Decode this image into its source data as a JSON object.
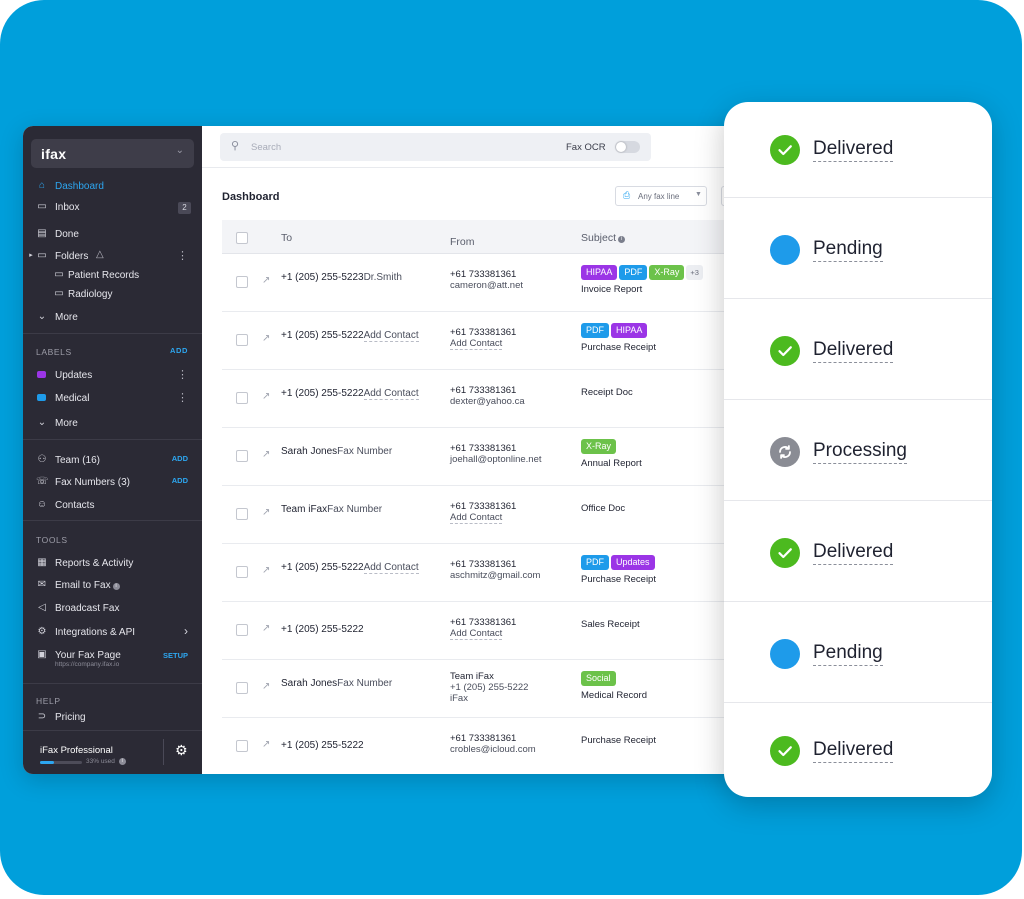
{
  "sidebar": {
    "logo": "ifax",
    "nav": {
      "dashboard": "Dashboard",
      "inbox": "Inbox",
      "inbox_count": "2",
      "done": "Done",
      "folders": "Folders",
      "patient_records": "Patient Records",
      "radiology": "Radiology",
      "more": "More"
    },
    "labels_section": {
      "title": "LABELS",
      "add": "ADD",
      "items": [
        {
          "label": "Updates",
          "color": "#9b35e6"
        },
        {
          "label": "Medical",
          "color": "#1e9bea"
        }
      ],
      "more": "More"
    },
    "team": {
      "label": "Team (16)",
      "add": "ADD"
    },
    "fax_numbers": {
      "label": "Fax Numbers (3)",
      "add": "ADD"
    },
    "contacts": "Contacts",
    "tools": {
      "title": "TOOLS",
      "reports": "Reports & Activity",
      "email_to_fax": "Email to Fax",
      "broadcast": "Broadcast Fax",
      "integrations": "Integrations &  API",
      "fax_page": "Your Fax Page",
      "fax_page_url": "https://company.ifax.io",
      "setup": "SETUP"
    },
    "help": {
      "title": "HELP",
      "pricing": "Pricing"
    },
    "plan": {
      "name": "iFax Professional",
      "used_label": "33% used",
      "used_fraction": 0.33
    }
  },
  "topbar": {
    "search_placeholder": "Search",
    "ocr_label": "Fax OCR"
  },
  "dashboard": {
    "title": "Dashboard",
    "fax_line_filter": "Any fax line",
    "columns": {
      "to": "To",
      "from": "From",
      "subject": "Subject"
    },
    "rows": [
      {
        "to1": "+1 (205) 255-5223",
        "to2": "Dr.Smith",
        "from1": "+61 733381361",
        "from2": "cameron@att.net",
        "tags": [
          {
            "t": "HIPAA",
            "c": "#9b35e6"
          },
          {
            "t": "PDF",
            "c": "#1e9bea"
          },
          {
            "t": "X-Ray",
            "c": "#6cc24a"
          }
        ],
        "more": "+3",
        "subject": "Invoice Report"
      },
      {
        "to1": "+1 (205) 255-5222",
        "to2": "Add Contact",
        "from1": "+61 733381361",
        "from2": "Add Contact",
        "tags": [
          {
            "t": "PDF",
            "c": "#1e9bea"
          },
          {
            "t": "HIPAA",
            "c": "#9b35e6"
          }
        ],
        "more": "",
        "subject": "Purchase Receipt"
      },
      {
        "to1": "+1 (205) 255-5222",
        "to2": "Add Contact",
        "from1": "+61 733381361",
        "from2": "dexter@yahoo.ca",
        "tags": [],
        "more": "",
        "subject": "Receipt Doc"
      },
      {
        "to1": "Sarah Jones",
        "to2": "Fax Number",
        "from1": "+61 733381361",
        "from2": "joehall@optonline.net",
        "tags": [
          {
            "t": "X-Ray",
            "c": "#6cc24a"
          }
        ],
        "more": "",
        "subject": "Annual Report"
      },
      {
        "to1": "Team iFax",
        "to2": "Fax Number",
        "from1": "+61 733381361",
        "from2": "Add Contact",
        "tags": [],
        "more": "",
        "subject": "Office Doc"
      },
      {
        "to1": "+1 (205) 255-5222",
        "to2": "Add Contact",
        "from1": "+61 733381361",
        "from2": "aschmitz@gmail.com",
        "tags": [
          {
            "t": "PDF",
            "c": "#1e9bea"
          },
          {
            "t": "Updates",
            "c": "#9b35e6"
          }
        ],
        "more": "",
        "subject": "Purchase Receipt"
      },
      {
        "to1": "+1 (205) 255-5222",
        "to2": "",
        "from1": "+61 733381361",
        "from2": "Add Contact",
        "tags": [],
        "more": "",
        "subject": "Sales Receipt"
      },
      {
        "to1": "Sarah Jones",
        "to2": "Fax Number",
        "from1": "Team iFax",
        "from2": "+1 (205) 255-5222",
        "from3": "iFax",
        "tags": [
          {
            "t": "Social",
            "c": "#6cc24a"
          }
        ],
        "more": "",
        "subject": "Medical Record"
      },
      {
        "to1": "+1 (205) 255-5222",
        "to2": "",
        "from1": "+61 733381361",
        "from2": "crobles@icloud.com",
        "tags": [],
        "more": "",
        "subject": "Purchase Receipt"
      }
    ]
  },
  "statuses": [
    {
      "label": "Delivered",
      "kind": "check",
      "color": "#4cba1f"
    },
    {
      "label": "Pending",
      "kind": "dot",
      "color": "#1e9bea"
    },
    {
      "label": "Delivered",
      "kind": "check",
      "color": "#4cba1f"
    },
    {
      "label": "Processing",
      "kind": "sync",
      "color": "#8a8c94"
    },
    {
      "label": "Delivered",
      "kind": "check",
      "color": "#4cba1f"
    },
    {
      "label": "Pending",
      "kind": "dot",
      "color": "#1e9bea"
    },
    {
      "label": "Delivered",
      "kind": "check",
      "color": "#4cba1f"
    }
  ],
  "colors": {
    "brand_blue": "#009fdb",
    "sidebar_bg": "#2b2a35",
    "accent": "#2da6f0"
  }
}
